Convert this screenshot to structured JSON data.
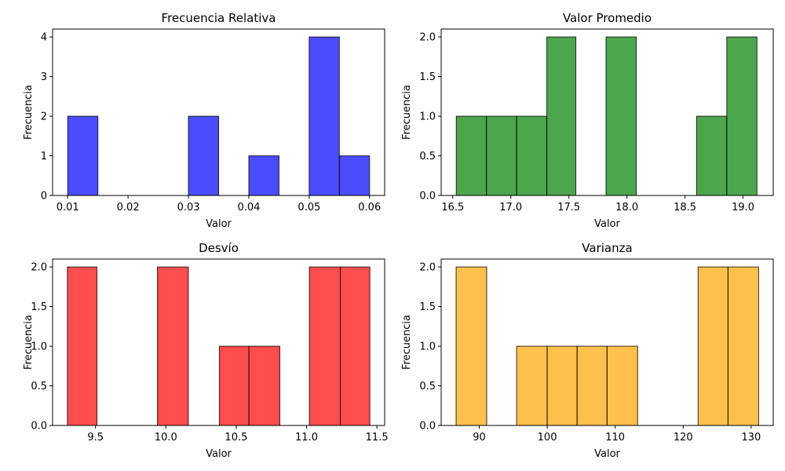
{
  "chart_data": [
    {
      "type": "bar",
      "title": "Frecuencia Relativa",
      "xlabel": "Valor",
      "ylabel": "Frecuencia",
      "color": "#0000ff",
      "xlim": [
        0.0075,
        0.0625
      ],
      "ylim": [
        0,
        4.2
      ],
      "xticks": [
        0.01,
        0.02,
        0.03,
        0.04,
        0.05,
        0.06
      ],
      "xtick_labels": [
        "0.01",
        "0.02",
        "0.03",
        "0.04",
        "0.05",
        "0.06"
      ],
      "yticks": [
        0,
        1,
        2,
        3,
        4
      ],
      "ytick_labels": [
        "0",
        "1",
        "2",
        "3",
        "4"
      ],
      "bins": [
        {
          "x0": 0.01,
          "x1": 0.015,
          "count": 2
        },
        {
          "x0": 0.03,
          "x1": 0.035,
          "count": 2
        },
        {
          "x0": 0.04,
          "x1": 0.045,
          "count": 1
        },
        {
          "x0": 0.05,
          "x1": 0.055,
          "count": 4
        },
        {
          "x0": 0.055,
          "x1": 0.06,
          "count": 1
        }
      ]
    },
    {
      "type": "bar",
      "title": "Valor Promedio",
      "xlabel": "Valor",
      "ylabel": "Frecuencia",
      "color": "#008000",
      "xlim": [
        16.4,
        19.26
      ],
      "ylim": [
        0,
        2.1
      ],
      "xticks": [
        16.5,
        17.0,
        17.5,
        18.0,
        18.5,
        19.0
      ],
      "xtick_labels": [
        "16.5",
        "17.0",
        "17.5",
        "18.0",
        "18.5",
        "19.0"
      ],
      "yticks": [
        0,
        0.5,
        1.0,
        1.5,
        2.0
      ],
      "ytick_labels": [
        "0.0",
        "0.5",
        "1.0",
        "1.5",
        "2.0"
      ],
      "bins": [
        {
          "x0": 16.53,
          "x1": 16.79,
          "count": 1
        },
        {
          "x0": 16.79,
          "x1": 17.05,
          "count": 1
        },
        {
          "x0": 17.05,
          "x1": 17.31,
          "count": 1
        },
        {
          "x0": 17.31,
          "x1": 17.56,
          "count": 2
        },
        {
          "x0": 17.82,
          "x1": 18.08,
          "count": 2
        },
        {
          "x0": 18.6,
          "x1": 18.86,
          "count": 1
        },
        {
          "x0": 18.86,
          "x1": 19.12,
          "count": 2
        }
      ]
    },
    {
      "type": "bar",
      "title": "Desvío",
      "xlabel": "Valor",
      "ylabel": "Frecuencia",
      "color": "#ff0000",
      "xlim": [
        9.195,
        11.555
      ],
      "ylim": [
        0,
        2.1
      ],
      "xticks": [
        9.5,
        10.0,
        10.5,
        11.0,
        11.5
      ],
      "xtick_labels": [
        "9.5",
        "10.0",
        "10.5",
        "11.0",
        "11.5"
      ],
      "yticks": [
        0,
        0.5,
        1.0,
        1.5,
        2.0
      ],
      "ytick_labels": [
        "0.0",
        "0.5",
        "1.0",
        "1.5",
        "2.0"
      ],
      "bins": [
        {
          "x0": 9.3,
          "x1": 9.51,
          "count": 2
        },
        {
          "x0": 9.94,
          "x1": 10.16,
          "count": 2
        },
        {
          "x0": 10.38,
          "x1": 10.59,
          "count": 1
        },
        {
          "x0": 10.59,
          "x1": 10.81,
          "count": 1
        },
        {
          "x0": 11.02,
          "x1": 11.24,
          "count": 2
        },
        {
          "x0": 11.24,
          "x1": 11.45,
          "count": 2
        }
      ]
    },
    {
      "type": "bar",
      "title": "Varianza",
      "xlabel": "Valor",
      "ylabel": "Frecuencia",
      "color": "#ffa500",
      "xlim": [
        84.4,
        133.25
      ],
      "ylim": [
        0,
        2.1
      ],
      "xticks": [
        90,
        100,
        110,
        120,
        130
      ],
      "xtick_labels": [
        "90",
        "100",
        "110",
        "120",
        "130"
      ],
      "yticks": [
        0,
        0.5,
        1.0,
        1.5,
        2.0
      ],
      "ytick_labels": [
        "0.0",
        "0.5",
        "1.0",
        "1.5",
        "2.0"
      ],
      "bins": [
        {
          "x0": 86.6,
          "x1": 91.1,
          "count": 2
        },
        {
          "x0": 95.5,
          "x1": 100.0,
          "count": 1
        },
        {
          "x0": 100.0,
          "x1": 104.4,
          "count": 1
        },
        {
          "x0": 104.4,
          "x1": 108.8,
          "count": 1
        },
        {
          "x0": 108.8,
          "x1": 113.3,
          "count": 1
        },
        {
          "x0": 122.2,
          "x1": 126.6,
          "count": 2
        },
        {
          "x0": 126.6,
          "x1": 131.1,
          "count": 2
        }
      ]
    }
  ]
}
